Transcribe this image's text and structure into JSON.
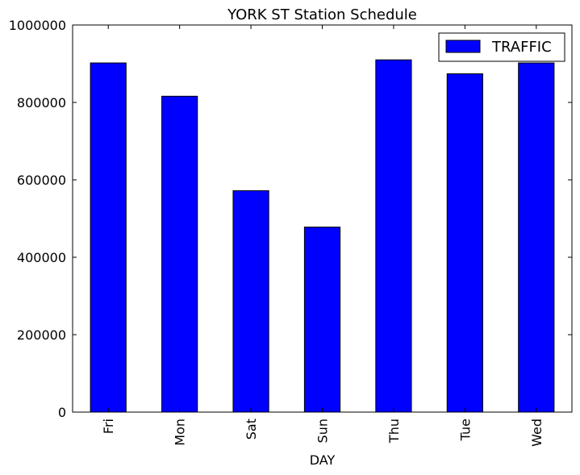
{
  "chart_data": {
    "type": "bar",
    "title": "YORK ST Station Schedule",
    "xlabel": "DAY",
    "ylabel": "",
    "categories": [
      "Fri",
      "Mon",
      "Sat",
      "Sun",
      "Thu",
      "Tue",
      "Wed"
    ],
    "series": [
      {
        "name": "TRAFFIC",
        "color": "#0000ff",
        "values": [
          902000,
          816000,
          572000,
          478000,
          910000,
          874000,
          902000
        ]
      }
    ],
    "ylim": [
      0,
      1000000
    ],
    "yticks": [
      0,
      200000,
      400000,
      600000,
      800000,
      1000000
    ],
    "ytick_labels": [
      "0",
      "200000",
      "400000",
      "600000",
      "800000",
      "1000000"
    ],
    "grid": false,
    "legend": "top-right"
  }
}
